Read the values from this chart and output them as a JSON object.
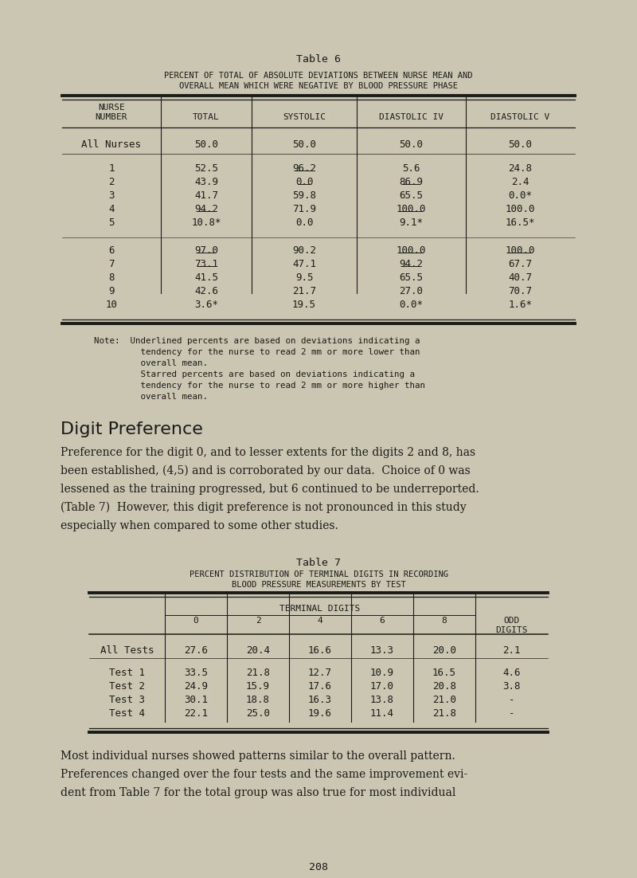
{
  "bg_color": "#cac6b2",
  "text_color": "#1a1a1a",
  "page_title": "Table 6",
  "table6_subtitle1": "PERCENT OF TOTAL OF ABSOLUTE DEVIATIONS BETWEEN NURSE MEAN AND",
  "table6_subtitle2": "OVERALL MEAN WHICH WERE NEGATIVE BY BLOOD PRESSURE PHASE",
  "table6_headers": [
    "NURSE\nNUMBER",
    "TOTAL",
    "SYSTOLIC",
    "DIASTOLIC IV",
    "DIASTOLIC V"
  ],
  "table6_allnurses": [
    "All Nurses",
    "50.0",
    "50.0",
    "50.0",
    "50.0"
  ],
  "table6_rows_group1": [
    [
      "1",
      "52.5",
      "96.2",
      "5.6",
      "24.8"
    ],
    [
      "2",
      "43.9",
      "0.0",
      "86.9",
      "2.4"
    ],
    [
      "3",
      "41.7",
      "59.8",
      "65.5",
      "0.0*"
    ],
    [
      "4",
      "94.2",
      "71.9",
      "100.0",
      "100.0"
    ],
    [
      "5",
      "10.8*",
      "0.0",
      "9.1*",
      "16.5*"
    ]
  ],
  "table6_rows_group2": [
    [
      "6",
      "97.0",
      "90.2",
      "100.0",
      "100.0"
    ],
    [
      "7",
      "73.1",
      "47.1",
      "94.2",
      "67.7"
    ],
    [
      "8",
      "41.5",
      "9.5",
      "65.5",
      "40.7"
    ],
    [
      "9",
      "42.6",
      "21.7",
      "27.0",
      "70.7"
    ],
    [
      "10",
      "3.6*",
      "19.5",
      "0.0*",
      "1.6*"
    ]
  ],
  "underline_g1": [
    [
      0,
      2
    ],
    [
      1,
      2
    ],
    [
      1,
      3
    ],
    [
      3,
      1
    ],
    [
      3,
      3
    ]
  ],
  "underline_g2": [
    [
      0,
      1
    ],
    [
      0,
      3
    ],
    [
      0,
      4
    ],
    [
      1,
      1
    ],
    [
      1,
      3
    ]
  ],
  "note_lines": [
    "Note:  Underlined percents are based on deviations indicating a",
    "         tendency for the nurse to read 2 mm or more lower than",
    "         overall mean.",
    "         Starred percents are based on deviations indicating a",
    "         tendency for the nurse to read 2 mm or more higher than",
    "         overall mean."
  ],
  "digit_pref_heading": "Digit Preference",
  "para1_lines": [
    "Preference for the digit 0, and to lesser extents for the digits 2 and 8, has",
    "been established, (4,5) and is corroborated by our data.  Choice of 0 was",
    "lessened as the training progressed, but 6 continued to be underreported.",
    "(Table 7)  However, this digit preference is not pronounced in this study",
    "especially when compared to some other studies."
  ],
  "table7_title": "Table 7",
  "table7_subtitle1": "PERCENT DISTRIBUTION OF TERMINAL DIGITS IN RECORDING",
  "table7_subtitle2": "BLOOD PRESSURE MEASUREMENTS BY TEST",
  "table7_alltest": [
    "All Tests",
    "27.6",
    "20.4",
    "16.6",
    "13.3",
    "20.0",
    "2.1"
  ],
  "table7_rows": [
    [
      "Test 1",
      "33.5",
      "21.8",
      "12.7",
      "10.9",
      "16.5",
      "4.6"
    ],
    [
      "Test 2",
      "24.9",
      "15.9",
      "17.6",
      "17.0",
      "20.8",
      "3.8"
    ],
    [
      "Test 3",
      "30.1",
      "18.8",
      "16.3",
      "13.8",
      "21.0",
      "-"
    ],
    [
      "Test 4",
      "22.1",
      "25.0",
      "19.6",
      "11.4",
      "21.8",
      "-"
    ]
  ],
  "bottom_para_lines": [
    "Most individual nurses showed patterns similar to the overall pattern.",
    "Preferences changed over the four tests and the same improvement evi-",
    "dent from Table 7 for the total group was also true for most individual"
  ],
  "page_number": "208"
}
